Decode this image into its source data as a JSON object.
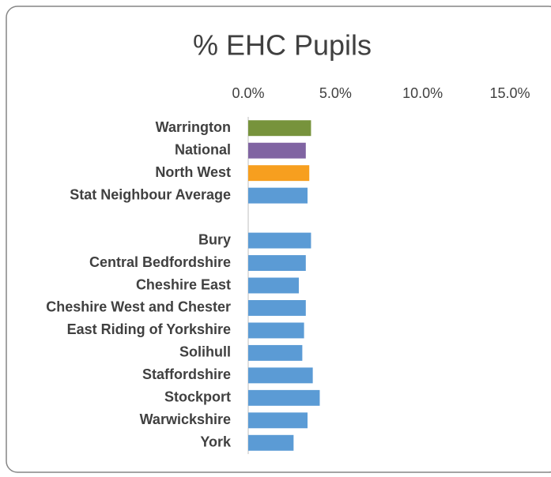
{
  "chart_data": {
    "type": "hbar",
    "title": "% EHC Pupils",
    "categories": [
      "Warrington",
      "National",
      "North West",
      "Stat Neighbour Average",
      null,
      "Bury",
      "Central Bedfordshire",
      "Cheshire East",
      "Cheshire West and Chester",
      "East Riding of Yorkshire",
      "Solihull",
      "Staffordshire",
      "Stockport",
      "Warwickshire",
      "York"
    ],
    "values": [
      3.6,
      3.3,
      3.5,
      3.4,
      null,
      3.6,
      3.3,
      2.9,
      3.3,
      3.2,
      3.1,
      3.7,
      4.1,
      3.4,
      2.6
    ],
    "colors": [
      "#77933c",
      "#8064a2",
      "#f79f1f",
      "#5b9bd5",
      null,
      "#5b9bd5",
      "#5b9bd5",
      "#5b9bd5",
      "#5b9bd5",
      "#5b9bd5",
      "#5b9bd5",
      "#5b9bd5",
      "#5b9bd5",
      "#5b9bd5",
      "#5b9bd5"
    ],
    "xlim": [
      0,
      15
    ],
    "xticks": [
      {
        "value": 0,
        "label": "0.0%"
      },
      {
        "value": 5,
        "label": "5.0%"
      },
      {
        "value": 10,
        "label": "10.0%"
      },
      {
        "value": 15,
        "label": "15.0%"
      }
    ]
  }
}
